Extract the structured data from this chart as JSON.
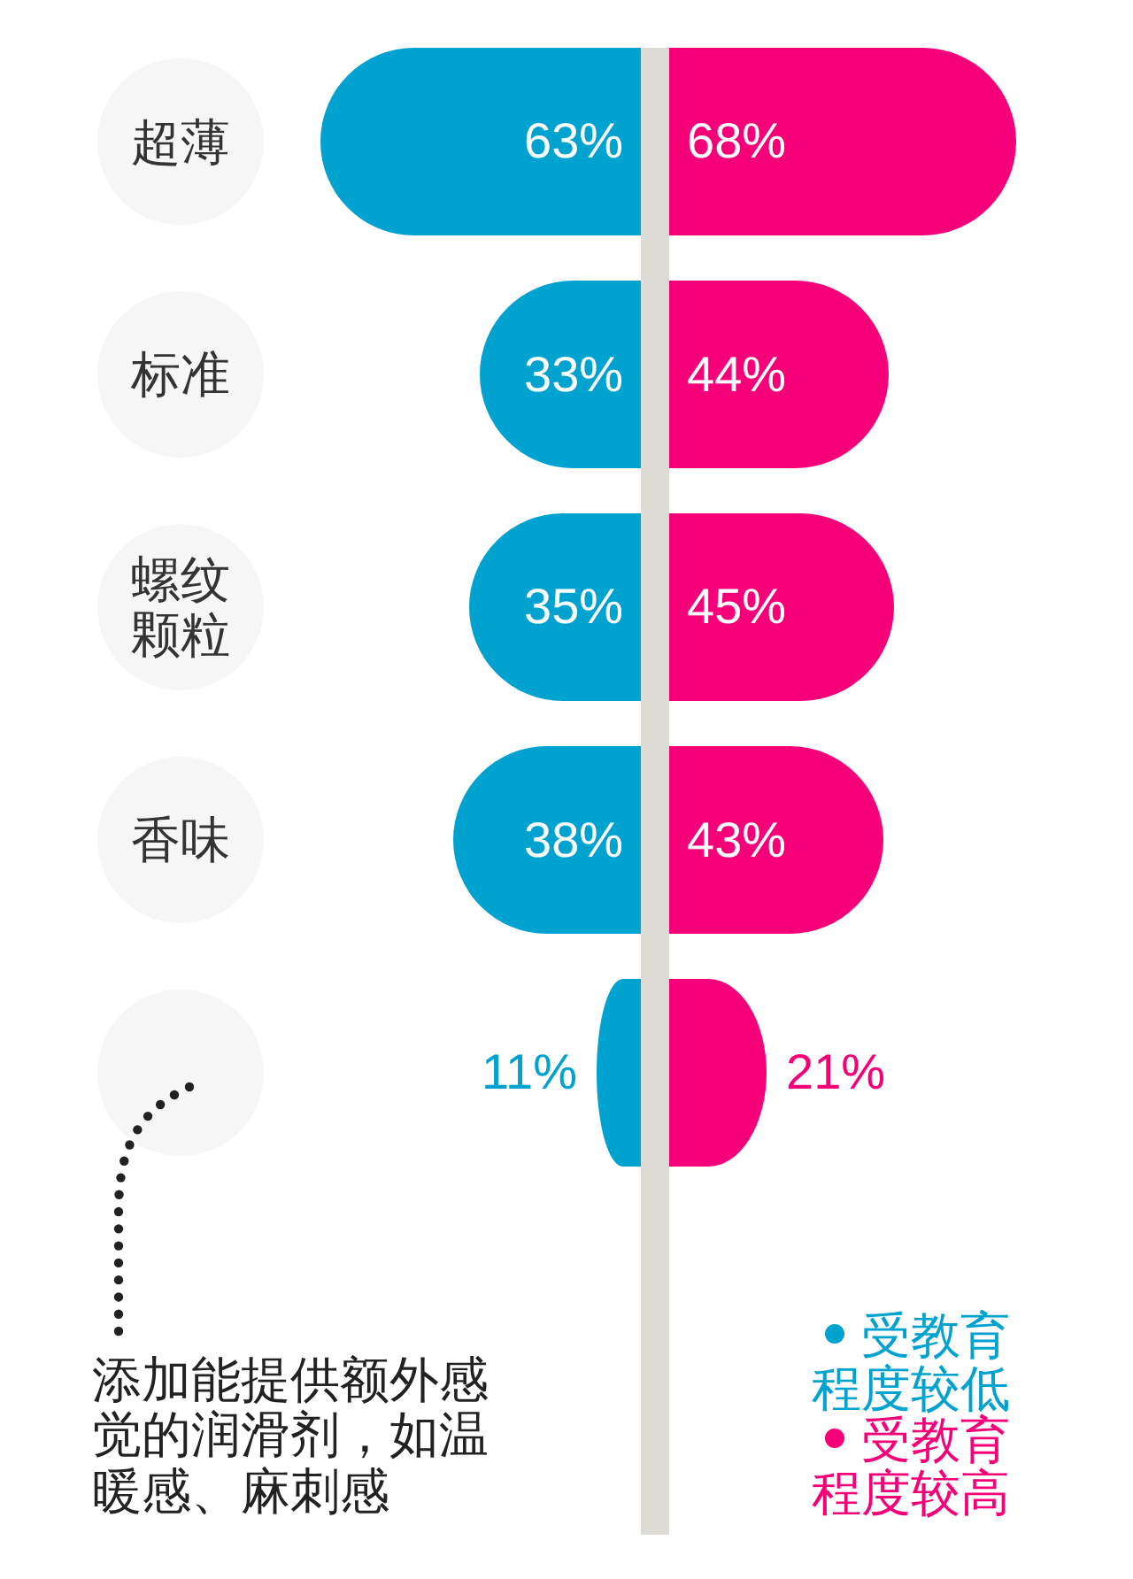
{
  "chart_data": [
    {
      "type": "bar",
      "orientation": "horizontal",
      "tick_labels": "y",
      "categories": [
        "超薄",
        "标准",
        "螺纹颗粒",
        "香味",
        null
      ],
      "series": [
        {
          "name": "受教育程度较低",
          "color": "#00a3d0",
          "values": [
            63,
            33,
            35,
            38,
            11
          ],
          "value_labels": [
            "63%",
            "33%",
            "35%",
            "38%",
            "11%"
          ]
        }
      ],
      "annotations": [
        "添加能提供额外感觉的润滑剂，如温暖感、麻刺感"
      ],
      "legend": "bottom right"
    },
    {
      "type": "bar",
      "orientation": "horizontal",
      "tick_labels": false,
      "categories": [
        null,
        null,
        null,
        null,
        null
      ],
      "series": [
        {
          "name": "受教育程度较高",
          "color": "#f6007a",
          "values": [
            68,
            44,
            45,
            43,
            21
          ],
          "value_labels": [
            "68%",
            "44%",
            "45%",
            "43%",
            "21%"
          ]
        }
      ],
      "legend": "bottom right"
    }
  ]
}
